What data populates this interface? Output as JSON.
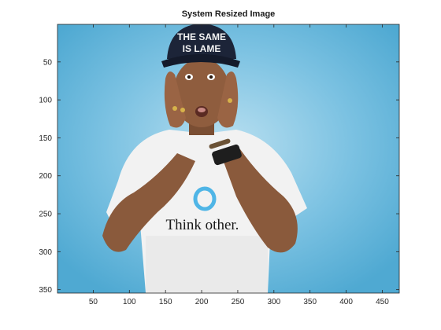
{
  "figure": {
    "title": "System Resized Image"
  },
  "axes": {
    "xlim": [
      0.5,
      473.5
    ],
    "ylim": [
      0.5,
      354.5
    ],
    "y_reversed": true,
    "x_ticks": [
      50,
      100,
      150,
      200,
      250,
      300,
      350,
      400,
      450
    ],
    "y_ticks": [
      50,
      100,
      150,
      200,
      250,
      300,
      350
    ],
    "x_tick_labels": [
      "50",
      "100",
      "150",
      "200",
      "250",
      "300",
      "350",
      "400",
      "450"
    ],
    "y_tick_labels": [
      "50",
      "100",
      "150",
      "200",
      "250",
      "300",
      "350"
    ]
  },
  "image": {
    "background_color": "#6db9dc",
    "cap_text_line1": "THE SAME",
    "cap_text_line2": "IS LAME",
    "shirt_text": "Think other."
  }
}
